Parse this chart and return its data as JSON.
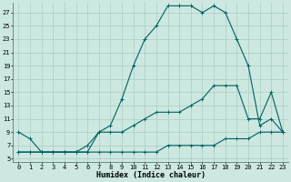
{
  "xlabel": "Humidex (Indice chaleur)",
  "bg_color": "#cce8e0",
  "grid_color": "#aaccc4",
  "line_color": "#006060",
  "xlim": [
    -0.5,
    23.5
  ],
  "ylim": [
    4.5,
    28.5
  ],
  "xticks": [
    0,
    1,
    2,
    3,
    4,
    5,
    6,
    7,
    8,
    9,
    10,
    11,
    12,
    13,
    14,
    15,
    16,
    17,
    18,
    19,
    20,
    21,
    22,
    23
  ],
  "yticks": [
    5,
    7,
    9,
    11,
    13,
    15,
    17,
    19,
    21,
    23,
    25,
    27
  ],
  "line1_x": [
    0,
    1,
    2,
    3,
    4,
    5,
    6,
    7,
    8,
    9,
    10,
    11,
    12,
    13,
    14,
    15,
    16,
    17,
    18,
    19,
    20,
    21,
    22,
    23
  ],
  "line1_y": [
    9,
    8,
    6,
    6,
    6,
    6,
    6,
    9,
    10,
    14,
    19,
    23,
    25,
    28,
    28,
    28,
    27,
    28,
    27,
    23,
    19,
    10,
    11,
    9
  ],
  "line2_x": [
    0,
    1,
    2,
    3,
    4,
    5,
    6,
    7,
    8,
    9,
    10,
    11,
    12,
    13,
    14,
    15,
    16,
    17,
    18,
    19,
    20,
    21,
    22,
    23
  ],
  "line2_y": [
    6,
    6,
    6,
    6,
    6,
    6,
    6,
    6,
    6,
    6,
    6,
    6,
    6,
    7,
    7,
    7,
    7,
    7,
    8,
    8,
    8,
    9,
    9,
    9
  ],
  "line3_x": [
    0,
    1,
    2,
    3,
    4,
    5,
    6,
    7,
    8,
    9,
    10,
    11,
    12,
    13,
    14,
    15,
    16,
    17,
    18,
    19,
    20,
    21,
    22,
    23
  ],
  "line3_y": [
    6,
    6,
    6,
    6,
    6,
    6,
    7,
    9,
    9,
    9,
    10,
    11,
    12,
    12,
    12,
    13,
    14,
    16,
    16,
    16,
    11,
    11,
    15,
    9
  ],
  "xlabel_fontsize": 6,
  "tick_fontsize": 5
}
